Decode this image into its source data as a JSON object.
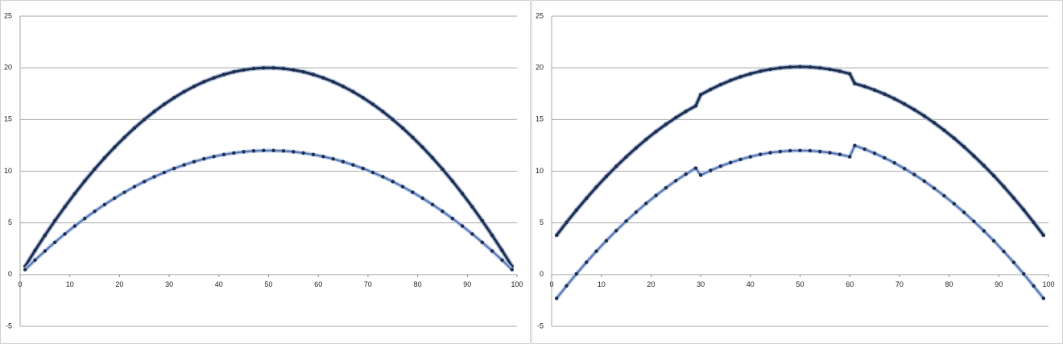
{
  "chart_data": [
    {
      "type": "line",
      "xlim": [
        0,
        100
      ],
      "ylim": [
        -5,
        25
      ],
      "xticks": [
        0,
        10,
        20,
        30,
        40,
        50,
        60,
        70,
        80,
        90,
        100
      ],
      "yticks": [
        -5,
        0,
        5,
        10,
        15,
        20,
        25
      ],
      "grid": true,
      "x": [
        1,
        3,
        5,
        7,
        9,
        11,
        13,
        15,
        17,
        19,
        21,
        23,
        25,
        27,
        29,
        31,
        33,
        35,
        37,
        39,
        41,
        43,
        45,
        47,
        49,
        51,
        53,
        55,
        57,
        59,
        61,
        63,
        65,
        67,
        69,
        71,
        73,
        75,
        77,
        79,
        81,
        83,
        85,
        87,
        89,
        91,
        93,
        95,
        97,
        99
      ],
      "series": [
        {
          "color": "#1f2e4f",
          "halo": "#aebfdc",
          "width": 3,
          "values": [
            0.79,
            2.33,
            3.8,
            5.21,
            6.55,
            7.83,
            9.05,
            10.2,
            11.29,
            12.31,
            13.27,
            14.17,
            15,
            15.77,
            16.47,
            17.11,
            17.69,
            18.2,
            18.65,
            19.03,
            19.35,
            19.61,
            19.8,
            19.93,
            19.99,
            19.99,
            19.93,
            19.8,
            19.61,
            19.35,
            19.03,
            18.65,
            18.2,
            17.69,
            17.11,
            16.47,
            15.77,
            15,
            14.17,
            13.27,
            12.31,
            11.29,
            10.2,
            9.05,
            7.83,
            6.55,
            5.21,
            3.8,
            2.33,
            0.79
          ]
        },
        {
          "color": "#4f74b3",
          "halo": "#bccbe6",
          "width": 2,
          "values": [
            0.48,
            1.4,
            2.28,
            3.12,
            3.93,
            4.7,
            5.43,
            6.12,
            6.77,
            7.39,
            7.96,
            8.5,
            9,
            9.46,
            9.88,
            10.27,
            10.61,
            10.92,
            11.19,
            11.42,
            11.61,
            11.76,
            11.88,
            11.96,
            12,
            12,
            11.96,
            11.88,
            11.76,
            11.61,
            11.42,
            11.19,
            10.92,
            10.61,
            10.27,
            9.88,
            9.46,
            9,
            8.5,
            7.96,
            7.39,
            6.77,
            6.12,
            5.43,
            4.7,
            3.93,
            3.12,
            2.28,
            1.4,
            0.48
          ]
        }
      ]
    },
    {
      "type": "line",
      "xlim": [
        0,
        100
      ],
      "ylim": [
        -5,
        25
      ],
      "xticks": [
        0,
        10,
        20,
        30,
        40,
        50,
        60,
        70,
        80,
        90,
        100
      ],
      "yticks": [
        -5,
        0,
        5,
        10,
        15,
        20,
        25
      ],
      "grid": true,
      "x": [
        1,
        3,
        5,
        7,
        9,
        11,
        13,
        15,
        17,
        19,
        21,
        23,
        25,
        27,
        29,
        30,
        32,
        34,
        36,
        38,
        40,
        42,
        44,
        46,
        48,
        50,
        52,
        54,
        56,
        58,
        60,
        61,
        63,
        65,
        67,
        69,
        71,
        73,
        75,
        77,
        79,
        81,
        83,
        85,
        87,
        89,
        91,
        93,
        95,
        97,
        99
      ],
      "series": [
        {
          "color": "#1f2e4f",
          "halo": "#aebfdc",
          "width": 3,
          "values": [
            3.8,
            5.05,
            6.24,
            7.37,
            8.46,
            9.49,
            10.46,
            11.38,
            12.25,
            13.07,
            13.83,
            14.53,
            15.18,
            15.78,
            16.32,
            17.4,
            17.91,
            18.37,
            18.78,
            19.13,
            19.42,
            19.67,
            19.86,
            19.99,
            20.07,
            20.1,
            20.07,
            19.99,
            19.86,
            19.67,
            19.42,
            18.48,
            18.2,
            17.85,
            17.46,
            17.01,
            16.5,
            15.95,
            15.34,
            14.68,
            13.96,
            13.19,
            12.36,
            11.47,
            10.54,
            9.56,
            8.51,
            7.41,
            6.27,
            5.06,
            3.8
          ]
        },
        {
          "color": "#4f74b3",
          "halo": "#bccbe6",
          "width": 2,
          "values": [
            -2.3,
            -1.09,
            0.07,
            1.19,
            2.26,
            3.27,
            4.25,
            5.17,
            6.04,
            6.88,
            7.65,
            8.39,
            9.08,
            9.71,
            10.3,
            9.62,
            10.07,
            10.48,
            10.83,
            11.14,
            11.4,
            11.62,
            11.79,
            11.9,
            11.98,
            12,
            11.98,
            11.9,
            11.79,
            11.62,
            11.4,
            12.48,
            12.13,
            11.73,
            11.29,
            10.8,
            10.25,
            9.67,
            9.04,
            8.35,
            7.62,
            6.85,
            6.02,
            5.14,
            4.23,
            3.26,
            2.24,
            1.18,
            0.07,
            -1.1,
            -2.3
          ]
        }
      ]
    }
  ]
}
